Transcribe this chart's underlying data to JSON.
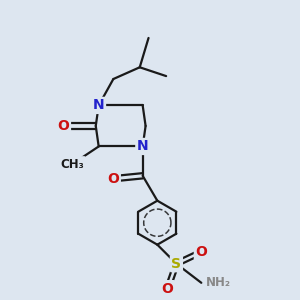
{
  "bg_color": "#dde6f0",
  "atom_colors": {
    "C": "#1a1a1a",
    "N": "#2222cc",
    "O": "#cc1111",
    "S": "#aaaa00",
    "H": "#888888"
  },
  "bond_color": "#1a1a1a",
  "bond_width": 1.6,
  "font_size_atom": 10,
  "font_size_small": 8.5
}
